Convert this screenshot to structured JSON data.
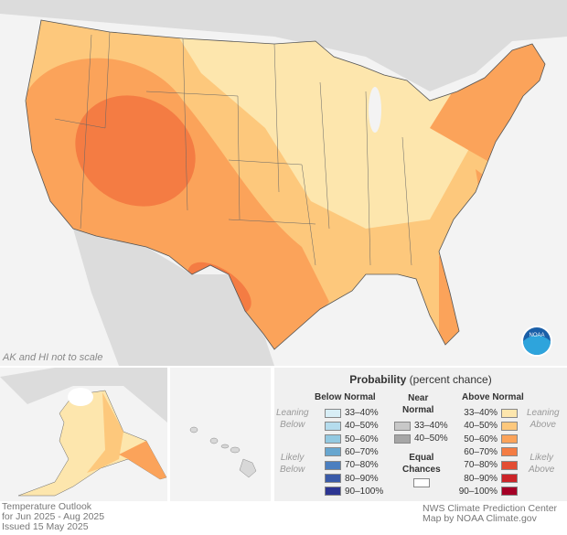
{
  "map": {
    "note": "AK and HI not to scale",
    "logo": "NOAA"
  },
  "legend": {
    "title": "Probability",
    "title_sub": "(percent chance)",
    "below_header": "Below Normal",
    "near_header_1": "Near",
    "near_header_2": "Normal",
    "above_header": "Above Normal",
    "leaning_below": [
      "Leaning",
      "Below"
    ],
    "likely_below": [
      "Likely",
      "Below"
    ],
    "leaning_above": [
      "Leaning",
      "Above"
    ],
    "likely_above": [
      "Likely",
      "Above"
    ],
    "equal_1": "Equal",
    "equal_2": "Chances",
    "below": [
      {
        "label": "33–40%",
        "color": "#d8eef6"
      },
      {
        "label": "40–50%",
        "color": "#b5dced"
      },
      {
        "label": "50–60%",
        "color": "#93c9e1"
      },
      {
        "label": "60–70%",
        "color": "#67a6cf"
      },
      {
        "label": "70–80%",
        "color": "#4b7fc0"
      },
      {
        "label": "80–90%",
        "color": "#3a5aa8"
      },
      {
        "label": "90–100%",
        "color": "#2c3592"
      }
    ],
    "near": [
      {
        "label": "33–40%",
        "color": "#c8c8c8"
      },
      {
        "label": "40–50%",
        "color": "#a6a6a6"
      }
    ],
    "above": [
      {
        "label": "33–40%",
        "color": "#fde6ad"
      },
      {
        "label": "40–50%",
        "color": "#fdc87c"
      },
      {
        "label": "50–60%",
        "color": "#fba35a"
      },
      {
        "label": "60–70%",
        "color": "#f47c43"
      },
      {
        "label": "70–80%",
        "color": "#e34d33"
      },
      {
        "label": "80–90%",
        "color": "#cc2428"
      },
      {
        "label": "90–100%",
        "color": "#a50026"
      }
    ],
    "equal_color": "#ffffff"
  },
  "footer": {
    "left": [
      "Temperature Outlook",
      "for Jun 2025 - Aug 2025",
      "Issued 15 May 2025"
    ],
    "right": [
      "NWS Climate Prediction Center",
      "Map by NOAA Climate.gov"
    ]
  }
}
